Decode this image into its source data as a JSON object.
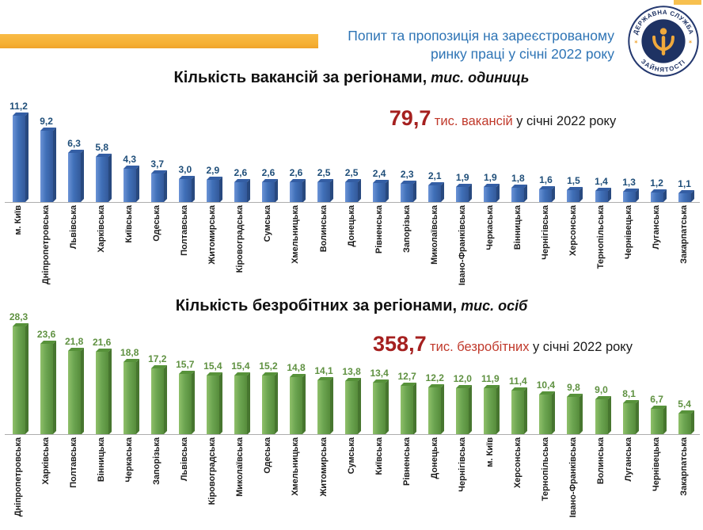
{
  "header": {
    "title_line1": "Попит та пропозиція на зареєстрованому",
    "title_line2": "ринку праці у січні 2022 року"
  },
  "logo": {
    "text_top": "ДЕРЖАВНА СЛУЖБА",
    "text_bottom": "ЗАЙНЯТОСТІ",
    "star_left": "✶",
    "star_right": "✶"
  },
  "theme": {
    "accent_yellow": "#F5AF33",
    "title_blue": "#2E74B5",
    "annotation_red": "#A5201F",
    "axis_gray": "#ADADAD",
    "logo_navy": "#1E3263",
    "logo_gold": "#F0A93C"
  },
  "chart_data": [
    {
      "type": "bar",
      "title": "Кількість вакансій за регіонами,",
      "unit_suffix": " тис. одиниць",
      "annotation": {
        "value": "79,7",
        "unit": "тис. вакансій",
        "period": "у січні 2022 року"
      },
      "categories": [
        "м. Київ",
        "Дніпропетровська",
        "Львівська",
        "Харківська",
        "Київська",
        "Одеська",
        "Полтавська",
        "Житомирська",
        "Кіровоградська",
        "Сумська",
        "Хмельницька",
        "Волинська",
        "Донецька",
        "Рівненська",
        "Запорізька",
        "Миколаївська",
        "Івано-Франківська",
        "Черкаська",
        "Вінницька",
        "Чернігівська",
        "Херсонська",
        "Тернопільська",
        "Чернівецька",
        "Луганська",
        "Закарпатська"
      ],
      "values": [
        11.2,
        9.2,
        6.3,
        5.8,
        4.3,
        3.7,
        3.0,
        2.9,
        2.6,
        2.6,
        2.6,
        2.5,
        2.5,
        2.4,
        2.3,
        2.1,
        1.9,
        1.9,
        1.8,
        1.6,
        1.5,
        1.4,
        1.3,
        1.2,
        1.1
      ],
      "ylim": [
        0,
        12
      ],
      "grid": false,
      "legend": false,
      "colors": {
        "highlight": "#6B93D6",
        "front": "#4070B8",
        "front_dark": "#33599A",
        "side": "#28497F",
        "top": "#345EA4",
        "value_label": "#1F4E79"
      }
    },
    {
      "type": "bar",
      "title": "Кількість безробітних за регіонами,",
      "unit_suffix": " тис. осіб",
      "annotation": {
        "value": "358,7",
        "unit": "тис. безробітних",
        "period": "у січні 2022 року"
      },
      "categories": [
        "Дніпропетровська",
        "Харківська",
        "Полтавська",
        "Вінницька",
        "Черкаська",
        "Запорізька",
        "Львівська",
        "Кіровоградська",
        "Миколаївська",
        "Одеська",
        "Хмельницька",
        "Житомирська",
        "Сумська",
        "Київська",
        "Рівненська",
        "Донецька",
        "Чернігівська",
        "м. Київ",
        "Херсонська",
        "Тернопільська",
        "Івано-Франківська",
        "Волинська",
        "Луганська",
        "Чернівецька",
        "Закарпатська"
      ],
      "values": [
        28.3,
        23.6,
        21.8,
        21.6,
        18.8,
        17.2,
        15.7,
        15.4,
        15.4,
        15.2,
        14.8,
        14.1,
        13.8,
        13.4,
        12.7,
        12.2,
        12.0,
        11.9,
        11.4,
        10.4,
        9.8,
        9.0,
        8.1,
        6.7,
        5.4
      ],
      "ylim": [
        0,
        30
      ],
      "grid": false,
      "legend": false,
      "colors": {
        "highlight": "#8FC06A",
        "front": "#6CA551",
        "front_dark": "#568C3B",
        "side": "#47762F",
        "top": "#57923A",
        "value_label": "#5F9141"
      }
    }
  ]
}
